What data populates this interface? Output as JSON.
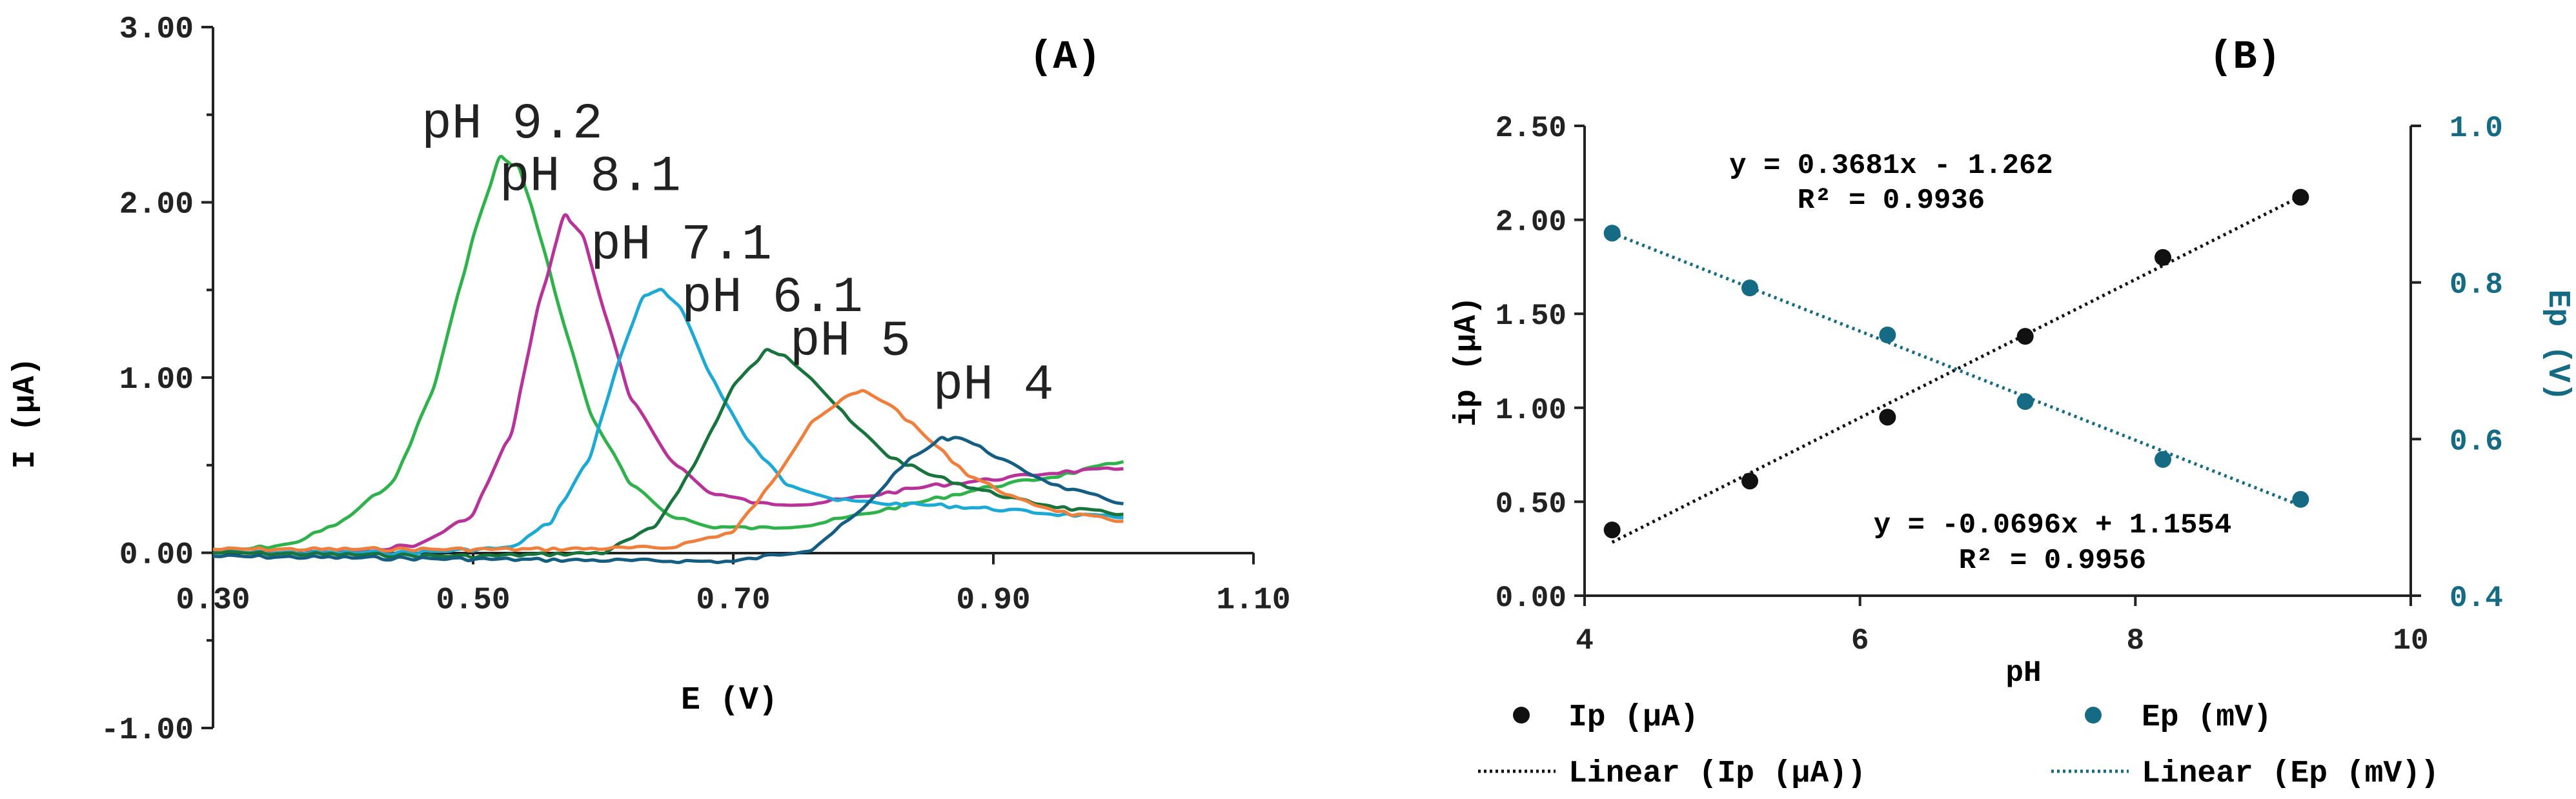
{
  "chart_data": [
    {
      "id": "A",
      "type": "line",
      "panel_label": "(A)",
      "xlabel": "E (V)",
      "ylabel": "I (µA)",
      "xlim": [
        0.3,
        1.1
      ],
      "ylim": [
        -1.0,
        3.0
      ],
      "x_ticks": [
        0.3,
        0.5,
        0.7,
        0.9,
        1.1
      ],
      "x_tick_labels": [
        "0.30",
        "0.50",
        "0.70",
        "0.90",
        "1.10"
      ],
      "y_ticks": [
        -1.0,
        0.0,
        1.0,
        2.0,
        3.0
      ],
      "y_tick_labels": [
        "-1.00",
        "0.00",
        "1.00",
        "2.00",
        "3.00"
      ],
      "series": [
        {
          "name": "pH 9.2",
          "color": "#2db34a",
          "x": [
            0.3,
            0.36,
            0.4,
            0.44,
            0.47,
            0.5,
            0.52,
            0.535,
            0.55,
            0.57,
            0.59,
            0.62,
            0.65,
            0.68,
            0.72,
            0.76,
            0.8,
            0.85,
            0.9,
            0.95,
            1.0
          ],
          "y": [
            0.0,
            0.05,
            0.18,
            0.42,
            0.95,
            1.8,
            2.25,
            2.2,
            1.85,
            1.3,
            0.8,
            0.4,
            0.22,
            0.15,
            0.14,
            0.16,
            0.22,
            0.3,
            0.38,
            0.44,
            0.52
          ]
        },
        {
          "name": "pH 8.1",
          "color": "#b8329a",
          "x": [
            0.3,
            0.4,
            0.46,
            0.5,
            0.53,
            0.55,
            0.57,
            0.585,
            0.6,
            0.62,
            0.65,
            0.68,
            0.72,
            0.76,
            0.8,
            0.85,
            0.9,
            0.95,
            1.0
          ],
          "y": [
            0.0,
            0.0,
            0.05,
            0.22,
            0.7,
            1.4,
            1.93,
            1.8,
            1.4,
            0.9,
            0.55,
            0.35,
            0.28,
            0.28,
            0.32,
            0.38,
            0.42,
            0.46,
            0.48
          ]
        },
        {
          "name": "pH 7.1",
          "color": "#1ba9d6",
          "x": [
            0.3,
            0.45,
            0.53,
            0.56,
            0.59,
            0.61,
            0.63,
            0.645,
            0.66,
            0.68,
            0.71,
            0.74,
            0.78,
            0.82,
            0.86,
            0.9,
            0.95,
            1.0
          ],
          "y": [
            0.0,
            0.0,
            0.03,
            0.18,
            0.55,
            1.05,
            1.45,
            1.5,
            1.4,
            1.05,
            0.65,
            0.4,
            0.3,
            0.28,
            0.27,
            0.25,
            0.22,
            0.2
          ]
        },
        {
          "name": "pH 6.1",
          "color": "#17743c",
          "x": [
            0.3,
            0.5,
            0.6,
            0.64,
            0.67,
            0.7,
            0.725,
            0.74,
            0.76,
            0.79,
            0.82,
            0.85,
            0.88,
            0.92,
            0.96,
            1.0
          ],
          "y": [
            0.0,
            -0.02,
            0.0,
            0.15,
            0.5,
            0.95,
            1.15,
            1.13,
            1.0,
            0.75,
            0.55,
            0.45,
            0.38,
            0.3,
            0.25,
            0.22
          ]
        },
        {
          "name": "pH 5",
          "color": "#f07f3c",
          "x": [
            0.3,
            0.55,
            0.65,
            0.7,
            0.73,
            0.76,
            0.79,
            0.8,
            0.82,
            0.85,
            0.88,
            0.92,
            0.96,
            1.0
          ],
          "y": [
            0.02,
            0.02,
            0.03,
            0.12,
            0.4,
            0.75,
            0.9,
            0.92,
            0.85,
            0.65,
            0.45,
            0.3,
            0.22,
            0.18
          ]
        },
        {
          "name": "pH 4",
          "color": "#135e82",
          "x": [
            0.3,
            0.55,
            0.7,
            0.76,
            0.8,
            0.83,
            0.86,
            0.875,
            0.89,
            0.92,
            0.95,
            0.98,
            1.0
          ],
          "y": [
            -0.02,
            -0.04,
            -0.05,
            0.02,
            0.25,
            0.5,
            0.65,
            0.66,
            0.6,
            0.48,
            0.38,
            0.32,
            0.28
          ]
        }
      ],
      "annotations": [
        {
          "text": "pH 9.2",
          "x": 0.53,
          "y": 2.37,
          "series": "pH 9.2"
        },
        {
          "text": "pH 8.1",
          "x": 0.59,
          "y": 2.07,
          "series": "pH 8.1"
        },
        {
          "text": "pH 7.1",
          "x": 0.66,
          "y": 1.68,
          "series": "pH 7.1"
        },
        {
          "text": "pH 6.1",
          "x": 0.73,
          "y": 1.38,
          "series": "pH 6.1"
        },
        {
          "text": "pH 5",
          "x": 0.79,
          "y": 1.13,
          "series": "pH 5"
        },
        {
          "text": "pH 4",
          "x": 0.9,
          "y": 0.88,
          "series": "pH 4"
        }
      ]
    },
    {
      "id": "B",
      "type": "scatter",
      "panel_label": "(B)",
      "xlabel": "pH",
      "ylabel_left": "ip (µA)",
      "ylabel_right": "Ep (V)",
      "xlim": [
        4,
        10
      ],
      "ylim_left": [
        0.0,
        2.5
      ],
      "ylim_right": [
        0.4,
        1.0
      ],
      "x_ticks": [
        4,
        6,
        8,
        10
      ],
      "x_tick_labels": [
        "4",
        "6",
        "8",
        "10"
      ],
      "y_left_ticks": [
        0.0,
        0.5,
        1.0,
        1.5,
        2.0,
        2.5
      ],
      "y_left_tick_labels": [
        "0.00",
        "0.50",
        "1.00",
        "1.50",
        "2.00",
        "2.50"
      ],
      "y_right_ticks": [
        0.4,
        0.6,
        0.8,
        1.0
      ],
      "y_right_tick_labels": [
        "0.4",
        "0.6",
        "0.8",
        "1.0"
      ],
      "series": [
        {
          "name": "Ip (µA)",
          "axis": "left",
          "color": "#111111",
          "x": [
            4.2,
            5.2,
            6.2,
            7.2,
            8.2,
            9.2
          ],
          "y": [
            0.35,
            0.61,
            0.95,
            1.38,
            1.8,
            2.12
          ]
        },
        {
          "name": "Ep (mV)",
          "axis": "right",
          "color": "#156b84",
          "x": [
            4.2,
            5.2,
            6.2,
            7.2,
            8.2,
            9.2
          ],
          "y": [
            0.863,
            0.793,
            0.733,
            0.648,
            0.574,
            0.523
          ]
        }
      ],
      "trendlines": [
        {
          "name": "Linear (Ip (µA))",
          "axis": "left",
          "color": "#111111",
          "slope": 0.3681,
          "intercept": -1.262,
          "x_range": [
            4.2,
            9.2
          ]
        },
        {
          "name": "Linear (Ep (mV))",
          "axis": "right",
          "color": "#156b84",
          "slope": -0.0696,
          "intercept": 1.1554,
          "x_range": [
            4.2,
            9.2
          ]
        }
      ],
      "equations": [
        {
          "line1": "y = 0.3681x - 1.262",
          "line2": "R² = 0.9936"
        },
        {
          "line1": "y = -0.0696x + 1.1554",
          "line2": "R² = 0.9956"
        }
      ],
      "legend": {
        "position": "bottom",
        "items": [
          "Ip (µA)",
          "Ep (mV)",
          "Linear (Ip (µA))",
          "Linear (Ep (mV))"
        ]
      }
    }
  ]
}
